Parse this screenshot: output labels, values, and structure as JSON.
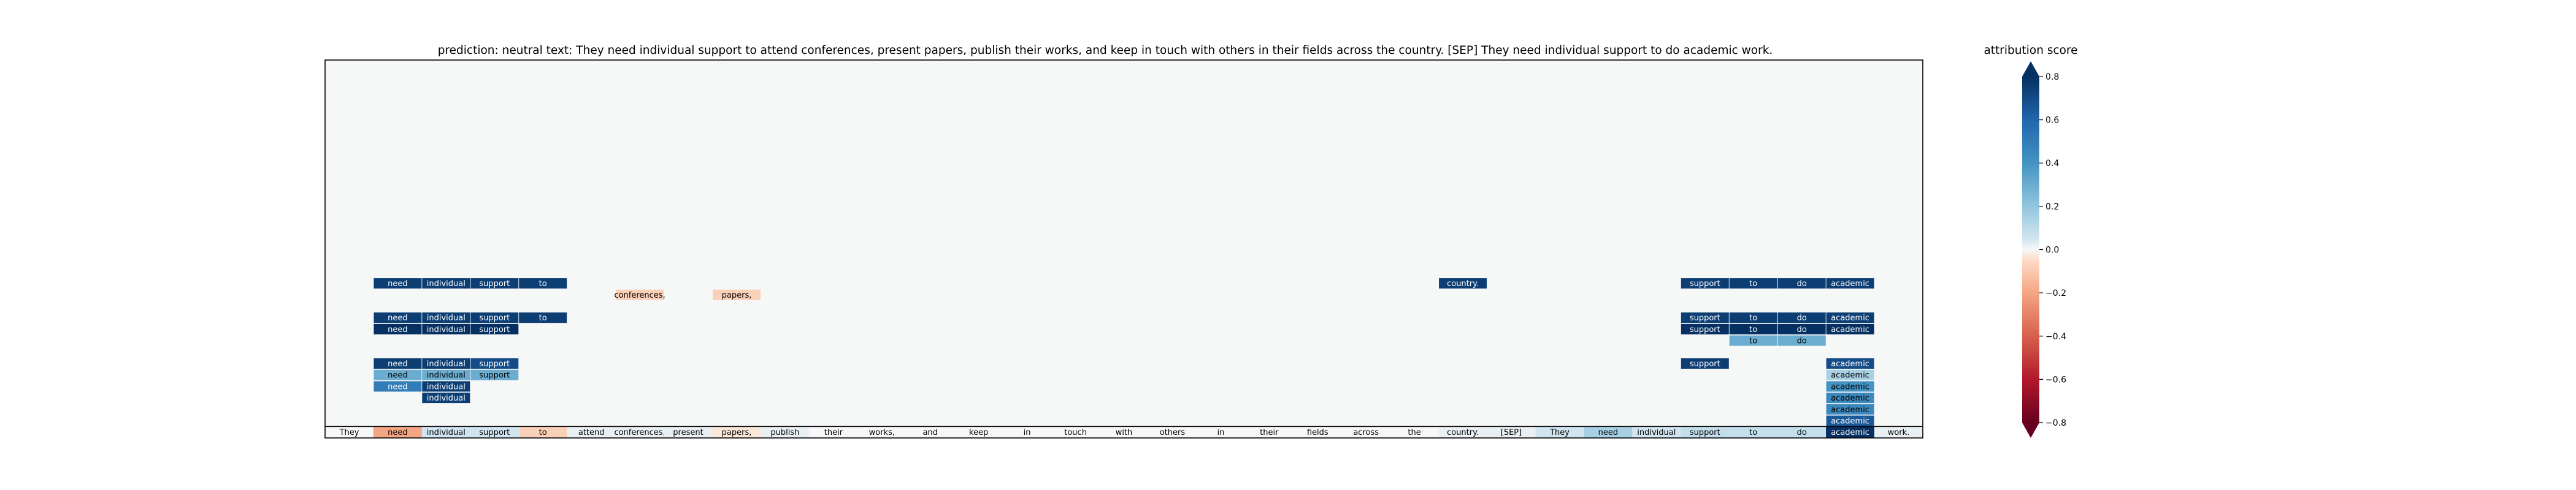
{
  "chart_data": {
    "type": "heatmap",
    "title": "prediction:  neutral     text:  They need individual support to attend conferences, present papers, publish their works, and keep in touch with others in their fields across the country. [SEP] They need individual support to do academic work.",
    "tokens": [
      "They",
      "need",
      "individual",
      "support",
      "to",
      "attend",
      "conferences,",
      "present",
      "papers,",
      "publish",
      "their",
      "works,",
      "and",
      "keep",
      "in",
      "touch",
      "with",
      "others",
      "in",
      "their",
      "fields",
      "across",
      "the",
      "country.",
      "[SEP]",
      "They",
      "need",
      "individual",
      "support",
      "to",
      "do",
      "academic",
      "work."
    ],
    "token_scores": [
      0.0,
      -0.2,
      0.05,
      0.05,
      -0.08,
      0.02,
      0.02,
      0.02,
      -0.03,
      0.02,
      0.0,
      0.0,
      0.0,
      0.0,
      0.0,
      0.0,
      0.0,
      0.0,
      0.0,
      0.0,
      0.0,
      0.0,
      0.0,
      0.02,
      0.02,
      0.05,
      0.15,
      0.05,
      0.08,
      0.08,
      0.08,
      0.8,
      0.02
    ],
    "n_rows": 33,
    "rows": [
      {
        "row": 1,
        "cells": [
          {
            "col": 31,
            "text": "academic",
            "score": 0.65
          }
        ]
      },
      {
        "row": 2,
        "cells": [
          {
            "col": 31,
            "text": "academic",
            "score": 0.45
          }
        ]
      },
      {
        "row": 3,
        "cells": [
          {
            "col": 2,
            "text": "individual",
            "score": 0.75
          },
          {
            "col": 31,
            "text": "academic",
            "score": 0.45
          }
        ]
      },
      {
        "row": 4,
        "cells": [
          {
            "col": 1,
            "text": "need",
            "score": 0.5
          },
          {
            "col": 2,
            "text": "individual",
            "score": 0.75
          },
          {
            "col": 31,
            "text": "academic",
            "score": 0.4
          }
        ]
      },
      {
        "row": 5,
        "cells": [
          {
            "col": 1,
            "text": "need",
            "score": 0.3
          },
          {
            "col": 2,
            "text": "individual",
            "score": 0.3
          },
          {
            "col": 3,
            "text": "support",
            "score": 0.3
          },
          {
            "col": 31,
            "text": "academic",
            "score": 0.15
          }
        ]
      },
      {
        "row": 6,
        "cells": [
          {
            "col": 1,
            "text": "need",
            "score": 0.75
          },
          {
            "col": 2,
            "text": "individual",
            "score": 0.75
          },
          {
            "col": 3,
            "text": "support",
            "score": 0.7
          },
          {
            "col": 28,
            "text": "support",
            "score": 0.75
          },
          {
            "col": 31,
            "text": "academic",
            "score": 0.7
          }
        ]
      },
      {
        "row": 8,
        "cells": [
          {
            "col": 29,
            "text": "to",
            "score": 0.3
          },
          {
            "col": 30,
            "text": "do",
            "score": 0.3
          }
        ]
      },
      {
        "row": 9,
        "cells": [
          {
            "col": 1,
            "text": "need",
            "score": 0.9
          },
          {
            "col": 2,
            "text": "individual",
            "score": 0.9
          },
          {
            "col": 3,
            "text": "support",
            "score": 0.9
          },
          {
            "col": 28,
            "text": "support",
            "score": 0.8
          },
          {
            "col": 29,
            "text": "to",
            "score": 0.8
          },
          {
            "col": 30,
            "text": "do",
            "score": 0.8
          },
          {
            "col": 31,
            "text": "academic",
            "score": 0.8
          }
        ]
      },
      {
        "row": 10,
        "cells": [
          {
            "col": 1,
            "text": "need",
            "score": 0.75
          },
          {
            "col": 2,
            "text": "individual",
            "score": 0.75
          },
          {
            "col": 3,
            "text": "support",
            "score": 0.75
          },
          {
            "col": 4,
            "text": "to",
            "score": 0.75
          },
          {
            "col": 28,
            "text": "support",
            "score": 0.75
          },
          {
            "col": 29,
            "text": "to",
            "score": 0.75
          },
          {
            "col": 30,
            "text": "do",
            "score": 0.75
          },
          {
            "col": 31,
            "text": "academic",
            "score": 0.75
          }
        ]
      },
      {
        "row": 12,
        "cells": [
          {
            "col": 6,
            "text": "conferences,",
            "score": -0.08
          },
          {
            "col": 8,
            "text": "papers,",
            "score": -0.08
          }
        ]
      },
      {
        "row": 13,
        "cells": [
          {
            "col": 1,
            "text": "need",
            "score": 0.75
          },
          {
            "col": 2,
            "text": "individual",
            "score": 0.75
          },
          {
            "col": 3,
            "text": "support",
            "score": 0.75
          },
          {
            "col": 4,
            "text": "to",
            "score": 0.75
          },
          {
            "col": 23,
            "text": "country.",
            "score": 0.75
          },
          {
            "col": 28,
            "text": "support",
            "score": 0.75
          },
          {
            "col": 29,
            "text": "to",
            "score": 0.75
          },
          {
            "col": 30,
            "text": "do",
            "score": 0.75
          },
          {
            "col": 31,
            "text": "academic",
            "score": 0.75
          }
        ]
      }
    ],
    "colorbar": {
      "label": "attribution score",
      "range": [
        -0.8,
        0.8
      ],
      "ticks": [
        "−0.8",
        "−0.6",
        "−0.4",
        "−0.2",
        "0.0",
        "0.2",
        "0.4",
        "0.6",
        "0.8"
      ],
      "colormap": "RdBu"
    }
  }
}
